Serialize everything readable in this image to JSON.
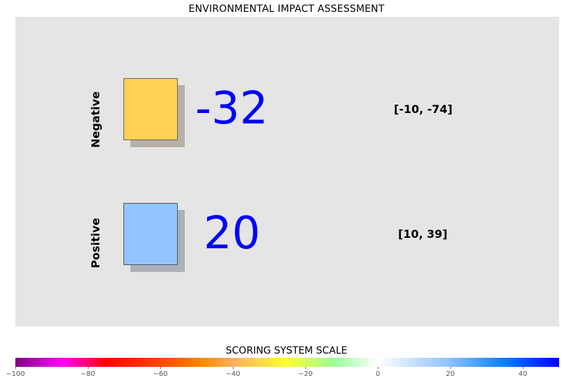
{
  "chart_data": {
    "type": "table",
    "title": "ENVIRONMENTAL IMPACT ASSESSMENT",
    "rows": [
      {
        "label": "Negative",
        "score": -32,
        "score_text": "-32",
        "range_text": "[-10, -74]",
        "range": [
          -10,
          -74
        ],
        "box_color": "#ffd154",
        "shadow_color": "#b5b1a8"
      },
      {
        "label": "Positive",
        "score": 20,
        "score_text": "20",
        "range_text": "[10, 39]",
        "range": [
          10,
          39
        ],
        "box_color": "#92c4ff",
        "shadow_color": "#abb1b9"
      }
    ],
    "colorbar": {
      "title": "SCORING SYSTEM SCALE",
      "range": [
        -100,
        50
      ],
      "ticks": [
        -100,
        -80,
        -60,
        -40,
        -20,
        0,
        20,
        40
      ],
      "tick_labels": [
        "−100",
        "−80",
        "−60",
        "−40",
        "−20",
        "0",
        "20",
        "40"
      ],
      "colors": [
        {
          "value": -100,
          "color": "#7f007f"
        },
        {
          "value": -87,
          "color": "#ff00ff"
        },
        {
          "value": -75,
          "color": "#ff0000"
        },
        {
          "value": -55,
          "color": "#ff6000"
        },
        {
          "value": -48,
          "color": "#ff8c00"
        },
        {
          "value": -40,
          "color": "#ffb060"
        },
        {
          "value": -25,
          "color": "#ffff30"
        },
        {
          "value": -12,
          "color": "#99ff99"
        },
        {
          "value": 0,
          "color": "#ffffff"
        },
        {
          "value": 20,
          "color": "#8ec0ff"
        },
        {
          "value": 35,
          "color": "#0080ff"
        },
        {
          "value": 50,
          "color": "#0000ff"
        }
      ]
    },
    "score_color": "#0000ff",
    "panel_background": "#e5e5e5"
  }
}
